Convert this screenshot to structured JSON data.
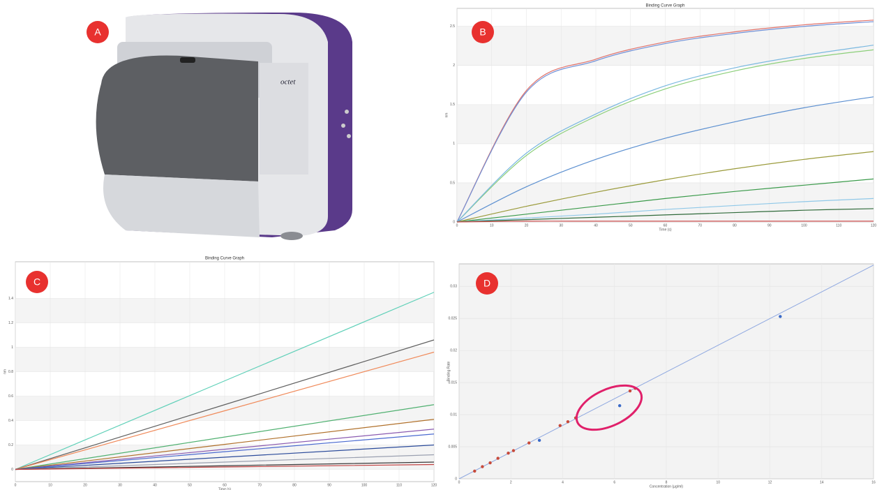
{
  "panels": [
    "A",
    "B",
    "C",
    "D"
  ],
  "photo_text": "octet",
  "chart_data": [
    {
      "type": "line",
      "title": "Binding Curve Graph",
      "xlabel": "Time (s)",
      "ylabel": "nm",
      "x": [
        0,
        20,
        40,
        60,
        80,
        100,
        120
      ],
      "xlim": [
        0,
        120
      ],
      "xticks": [
        0,
        10,
        20,
        30,
        40,
        50,
        60,
        70,
        80,
        90,
        100,
        110,
        120
      ],
      "ylim": [
        0,
        2.73
      ],
      "yticks": [
        0,
        0.5,
        1,
        1.5,
        2,
        2.5
      ],
      "grid": true,
      "series": [
        {
          "color": "#e0726a",
          "values": [
            0,
            1.68,
            2.08,
            2.3,
            2.43,
            2.52,
            2.58
          ]
        },
        {
          "color": "#6f8fd6",
          "values": [
            0,
            1.66,
            2.06,
            2.28,
            2.41,
            2.5,
            2.56
          ]
        },
        {
          "color": "#8ccf7a",
          "values": [
            0,
            0.85,
            1.35,
            1.7,
            1.93,
            2.09,
            2.2
          ]
        },
        {
          "color": "#7ab8e0",
          "values": [
            0,
            0.88,
            1.38,
            1.74,
            1.97,
            2.13,
            2.26
          ]
        },
        {
          "color": "#5b8fd0",
          "values": [
            0,
            0.45,
            0.8,
            1.07,
            1.28,
            1.46,
            1.6
          ]
        },
        {
          "color": "#9a9a3a",
          "values": [
            0,
            0.2,
            0.38,
            0.54,
            0.68,
            0.8,
            0.9
          ]
        },
        {
          "color": "#3a9a4a",
          "values": [
            0,
            0.1,
            0.2,
            0.3,
            0.39,
            0.47,
            0.55
          ]
        },
        {
          "color": "#8fc8e8",
          "values": [
            0,
            0.05,
            0.1,
            0.16,
            0.21,
            0.26,
            0.3
          ]
        },
        {
          "color": "#2f6a3a",
          "values": [
            0,
            0.03,
            0.06,
            0.09,
            0.12,
            0.15,
            0.17
          ]
        },
        {
          "color": "#d05050",
          "values": [
            0,
            0.01,
            0.01,
            0.01,
            0.01,
            0.01,
            0.01
          ]
        }
      ]
    },
    {
      "type": "line",
      "title": "Binding Curve Graph",
      "xlabel": "Time (s)",
      "ylabel": "nm",
      "x": [
        0,
        120
      ],
      "xlim": [
        0,
        120
      ],
      "xticks": [
        0,
        10,
        20,
        30,
        40,
        50,
        60,
        70,
        80,
        90,
        100,
        110,
        120
      ],
      "ylim": [
        -0.1,
        1.7
      ],
      "yticks": [
        0,
        0.2,
        0.4,
        0.6,
        0.8,
        1,
        1.2,
        1.4
      ],
      "grid": true,
      "series": [
        {
          "color": "#5fd0b8",
          "values": [
            0,
            1.45
          ]
        },
        {
          "color": "#606060",
          "values": [
            0,
            1.06
          ]
        },
        {
          "color": "#f08a5a",
          "values": [
            0,
            0.96
          ]
        },
        {
          "color": "#4fb070",
          "values": [
            0,
            0.53
          ]
        },
        {
          "color": "#b0702a",
          "values": [
            0,
            0.41
          ]
        },
        {
          "color": "#8a5ab0",
          "values": [
            0,
            0.33
          ]
        },
        {
          "color": "#4a6ad0",
          "values": [
            0,
            0.29
          ]
        },
        {
          "color": "#2a4a9a",
          "values": [
            0,
            0.2
          ]
        },
        {
          "color": "#9aa0b0",
          "values": [
            0,
            0.12
          ]
        },
        {
          "color": "#3a3a3a",
          "values": [
            0,
            0.06
          ]
        },
        {
          "color": "#c04040",
          "values": [
            0,
            0.04
          ]
        }
      ]
    },
    {
      "type": "scatter",
      "xlabel": "Concentration (µg/ml)",
      "ylabel": "Binding Rate",
      "xlim": [
        0,
        16
      ],
      "xticks": [
        0,
        2,
        4,
        6,
        8,
        10,
        12,
        14,
        16
      ],
      "ylim": [
        0,
        0.0335
      ],
      "yticks": [
        0,
        0.005,
        0.01,
        0.015,
        0.02,
        0.025,
        0.03
      ],
      "fit": [
        0,
        0.0333
      ],
      "fit_color": "#8fa8e0",
      "series": [
        {
          "color": "#3a6ac8",
          "x": [
            3.1,
            6.2,
            12.4
          ],
          "values": [
            0.006,
            0.0114,
            0.0253
          ]
        },
        {
          "color": "#c84a3a",
          "x": [
            0.6,
            0.9,
            1.2,
            1.5,
            1.9,
            2.1,
            2.7,
            3.9,
            4.2,
            4.5,
            6.6,
            6.8
          ],
          "values": [
            0.0012,
            0.0019,
            0.0025,
            0.0032,
            0.004,
            0.0044,
            0.0056,
            0.0083,
            0.0089,
            0.0095,
            0.0137,
            0.0141
          ]
        }
      ]
    }
  ]
}
